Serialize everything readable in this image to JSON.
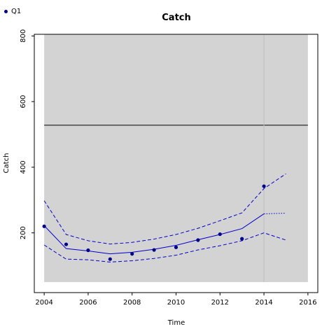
{
  "colors": {
    "panel_bg": "#d3d3d3",
    "series": "#0000cd",
    "points": "#00008b",
    "reference_line": "#000000",
    "vline": "#bebebe"
  },
  "legend": {
    "label": "Q1"
  },
  "chart_data": {
    "type": "line",
    "title": "Catch",
    "xlabel": "Time",
    "ylabel": "Catch",
    "xlim": [
      2003.55,
      2016.45
    ],
    "ylim": [
      18,
      805
    ],
    "xticks": [
      2004,
      2006,
      2008,
      2010,
      2012,
      2014,
      2016
    ],
    "yticks": [
      200,
      400,
      600,
      800
    ],
    "shaded_x": [
      2004,
      2016
    ],
    "shaded_y": [
      50,
      805
    ],
    "reference_line_y": 528,
    "vertical_line_x": 2014,
    "grid": false,
    "legend_position": "top-left",
    "series": [
      {
        "name": "Q1",
        "style": "points",
        "x": [
          2004,
          2005,
          2006,
          2007,
          2008,
          2009,
          2010,
          2011,
          2012,
          2013,
          2014
        ],
        "y": [
          220,
          165,
          147,
          120,
          136,
          148,
          156,
          178,
          196,
          182,
          342
        ]
      },
      {
        "style": "solid",
        "x": [
          2004,
          2005,
          2006,
          2007,
          2008,
          2009,
          2010,
          2011,
          2012,
          2013,
          2014
        ],
        "y": [
          222,
          152,
          145,
          136,
          141,
          150,
          162,
          179,
          195,
          213,
          258
        ]
      },
      {
        "style": "dashed",
        "x": [
          2004,
          2005,
          2006,
          2007,
          2008,
          2009,
          2010,
          2011,
          2012,
          2013,
          2014,
          2015
        ],
        "y": [
          298,
          195,
          176,
          166,
          171,
          181,
          195,
          214,
          237,
          261,
          335,
          380
        ]
      },
      {
        "style": "dashed",
        "x": [
          2004,
          2005,
          2006,
          2007,
          2008,
          2009,
          2010,
          2011,
          2012,
          2013,
          2014,
          2015
        ],
        "y": [
          163,
          120,
          118,
          111,
          115,
          122,
          132,
          148,
          161,
          176,
          200,
          178
        ]
      },
      {
        "style": "dotted",
        "x": [
          2014,
          2015
        ],
        "y": [
          258,
          260
        ]
      }
    ]
  }
}
